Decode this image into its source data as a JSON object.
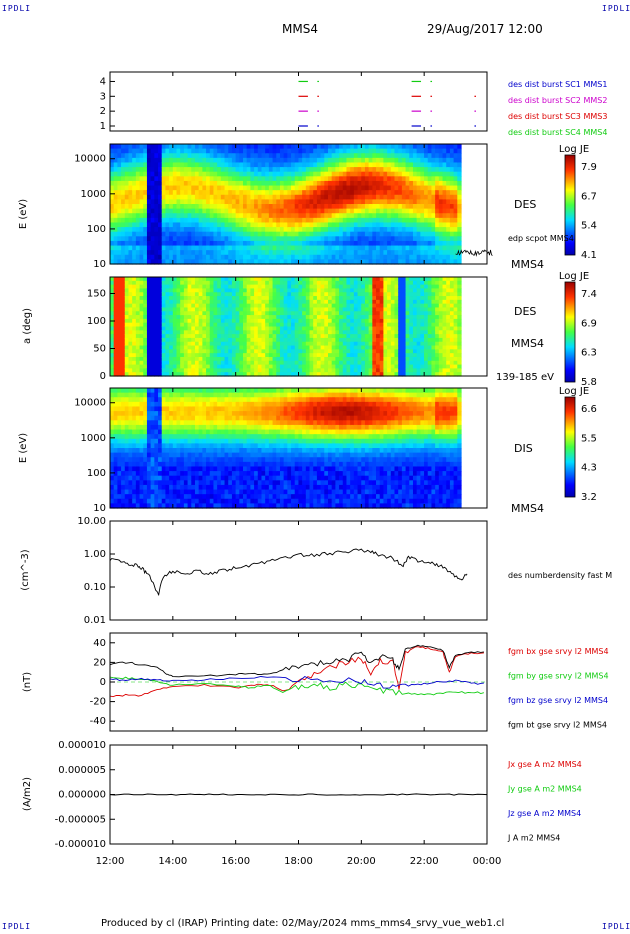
{
  "corners": {
    "top_left": "IPDLI",
    "top_right": "IPDLI",
    "bottom_left": "IPDLI",
    "bottom_right": "IPDLI"
  },
  "header": {
    "title": "MMS4",
    "date": "29/Aug/2017 12:00"
  },
  "footer": {
    "text": "Produced by cl (IRAP)   Printing date: 02/May/2024   mms_mms4_srvy_vue_web1.cl"
  },
  "time_axis": {
    "ticks": [
      "12:00",
      "14:00",
      "16:00",
      "18:00",
      "20:00",
      "22:00",
      "00:00"
    ],
    "hours": [
      12,
      14,
      16,
      18,
      20,
      22,
      24
    ]
  },
  "colors": {
    "red": "#dd0000",
    "green": "#11cc11",
    "blue": "#0000cc",
    "magenta": "#cc00cc",
    "black": "#000000",
    "label_blue": "#0000cc"
  },
  "chart_data": [
    {
      "type": "timeline",
      "name": "burst_availability",
      "yticks": [
        "4",
        "3",
        "2",
        "1"
      ],
      "legend": [
        {
          "label": "des dist burst SC1 MMS1",
          "color": "#0000cc"
        },
        {
          "label": "des dist burst SC2 MMS2",
          "color": "#cc00cc"
        },
        {
          "label": "des dist burst SC3 MMS3",
          "color": "#dd0000"
        },
        {
          "label": "des dist burst SC4 MMS4",
          "color": "#11cc11"
        }
      ],
      "segments": [
        {
          "row": 4,
          "color": "#11cc11",
          "intervals": [
            [
              18.0,
              18.3
            ],
            [
              18.6,
              18.65
            ],
            [
              21.6,
              21.9
            ],
            [
              22.2,
              22.25
            ]
          ]
        },
        {
          "row": 3,
          "color": "#dd0000",
          "intervals": [
            [
              18.0,
              18.3
            ],
            [
              18.6,
              18.65
            ],
            [
              21.6,
              21.9
            ],
            [
              22.2,
              22.25
            ],
            [
              23.6,
              23.65
            ]
          ]
        },
        {
          "row": 2,
          "color": "#cc00cc",
          "intervals": [
            [
              18.0,
              18.3
            ],
            [
              18.6,
              18.65
            ],
            [
              21.6,
              21.9
            ],
            [
              22.2,
              22.25
            ],
            [
              23.6,
              23.65
            ]
          ]
        },
        {
          "row": 1,
          "color": "#0000cc",
          "intervals": [
            [
              18.0,
              18.3
            ],
            [
              18.6,
              18.65
            ],
            [
              21.6,
              21.9
            ],
            [
              22.2,
              22.25
            ],
            [
              23.6,
              23.65
            ]
          ]
        }
      ]
    },
    {
      "type": "heatmap",
      "name": "des_energy_spectrogram",
      "ylabel": "E (eV)",
      "yticks": [
        "10000",
        "1000",
        "100",
        "10"
      ],
      "scale": "log",
      "side_labels": [
        "DES",
        "edp scpot MMS4",
        "MMS4"
      ],
      "colorbar": {
        "title": "Log JE",
        "ticks": [
          "7.9",
          "6.7",
          "5.4",
          "4.1"
        ]
      }
    },
    {
      "type": "heatmap",
      "name": "des_pitch_angle",
      "ylabel": "a (deg)",
      "yticks": [
        "150",
        "100",
        "50",
        "0"
      ],
      "side_labels": [
        "DES",
        "MMS4",
        "139-185 eV"
      ],
      "colorbar": {
        "title": "Log JE",
        "ticks": [
          "7.4",
          "6.9",
          "6.3",
          "5.8"
        ]
      }
    },
    {
      "type": "heatmap",
      "name": "dis_energy_spectrogram",
      "ylabel": "E (eV)",
      "yticks": [
        "10000",
        "1000",
        "100",
        "10"
      ],
      "scale": "log",
      "side_labels": [
        "DIS",
        "MMS4"
      ],
      "colorbar": {
        "title": "Log JE",
        "ticks": [
          "6.6",
          "5.5",
          "4.3",
          "3.2"
        ]
      }
    },
    {
      "type": "line",
      "name": "density",
      "ylabel": "(cm^-3)",
      "yticks": [
        "10.00",
        "1.00",
        "0.10",
        "0.01"
      ],
      "scale": "log",
      "ylim": [
        0.01,
        10
      ],
      "series": [
        {
          "name": "des numberdensity fast M",
          "color": "#000000",
          "points": [
            [
              12.0,
              0.7
            ],
            [
              12.3,
              0.6
            ],
            [
              12.6,
              0.5
            ],
            [
              12.9,
              0.45
            ],
            [
              13.1,
              0.3
            ],
            [
              13.3,
              0.18
            ],
            [
              13.45,
              0.08
            ],
            [
              13.55,
              0.06
            ],
            [
              13.7,
              0.2
            ],
            [
              14.0,
              0.3
            ],
            [
              14.4,
              0.25
            ],
            [
              14.8,
              0.3
            ],
            [
              15.2,
              0.25
            ],
            [
              15.6,
              0.32
            ],
            [
              16.0,
              0.38
            ],
            [
              16.5,
              0.45
            ],
            [
              17.0,
              0.6
            ],
            [
              17.5,
              0.75
            ],
            [
              18.0,
              0.95
            ],
            [
              18.5,
              0.9
            ],
            [
              19.0,
              1.05
            ],
            [
              19.5,
              1.2
            ],
            [
              20.0,
              1.3
            ],
            [
              20.3,
              1.15
            ],
            [
              20.6,
              0.95
            ],
            [
              21.0,
              0.75
            ],
            [
              21.3,
              0.4
            ],
            [
              21.5,
              0.8
            ],
            [
              21.8,
              0.65
            ],
            [
              22.2,
              0.55
            ],
            [
              22.5,
              0.45
            ],
            [
              22.8,
              0.3
            ],
            [
              23.0,
              0.2
            ],
            [
              23.2,
              0.15
            ],
            [
              23.4,
              0.3
            ]
          ]
        }
      ]
    },
    {
      "type": "line",
      "name": "magnetic_field",
      "ylabel": "(nT)",
      "yticks": [
        "40",
        "20",
        "0",
        "-20",
        "-40"
      ],
      "ylim": [
        -50,
        50
      ],
      "series": [
        {
          "name": "fgm bx gse srvy l2 MMS4",
          "color": "#dd0000",
          "points": [
            [
              12.0,
              -15
            ],
            [
              12.5,
              -13
            ],
            [
              13.0,
              -14
            ],
            [
              13.5,
              -8
            ],
            [
              14.0,
              -5
            ],
            [
              15.0,
              -3
            ],
            [
              16.0,
              -6
            ],
            [
              16.5,
              -4
            ],
            [
              17.0,
              -2
            ],
            [
              17.5,
              -8
            ],
            [
              18.0,
              0
            ],
            [
              18.5,
              8
            ],
            [
              19.0,
              15
            ],
            [
              19.5,
              20
            ],
            [
              20.0,
              25
            ],
            [
              20.3,
              10
            ],
            [
              20.6,
              22
            ],
            [
              21.0,
              20
            ],
            [
              21.2,
              -5
            ],
            [
              21.4,
              30
            ],
            [
              21.8,
              36
            ],
            [
              22.2,
              34
            ],
            [
              22.6,
              30
            ],
            [
              22.8,
              10
            ],
            [
              23.0,
              26
            ],
            [
              23.5,
              30
            ],
            [
              24.0,
              29
            ]
          ]
        },
        {
          "name": "fgm by gse srvy l2 MMS4",
          "color": "#11cc11",
          "points": [
            [
              12.0,
              5
            ],
            [
              12.5,
              4
            ],
            [
              13.0,
              3
            ],
            [
              13.5,
              0
            ],
            [
              14.0,
              -3
            ],
            [
              15.0,
              -2
            ],
            [
              16.0,
              -4
            ],
            [
              16.5,
              -6
            ],
            [
              17.0,
              -3
            ],
            [
              17.5,
              -10
            ],
            [
              18.0,
              -5
            ],
            [
              18.5,
              -2
            ],
            [
              19.0,
              -6
            ],
            [
              19.5,
              -3
            ],
            [
              20.0,
              -4
            ],
            [
              20.5,
              -8
            ],
            [
              21.0,
              -10
            ],
            [
              21.5,
              -12
            ],
            [
              22.0,
              -13
            ],
            [
              22.5,
              -12
            ],
            [
              23.0,
              -10
            ],
            [
              23.5,
              -11
            ],
            [
              24.0,
              -11
            ]
          ]
        },
        {
          "name": "fgm bz gse srvy l2 MMS4",
          "color": "#0000cc",
          "points": [
            [
              12.0,
              3
            ],
            [
              12.5,
              2
            ],
            [
              13.0,
              3
            ],
            [
              13.5,
              2
            ],
            [
              14.0,
              1
            ],
            [
              15.0,
              2
            ],
            [
              16.0,
              4
            ],
            [
              17.0,
              5
            ],
            [
              18.0,
              3
            ],
            [
              19.0,
              2
            ],
            [
              20.0,
              1
            ],
            [
              20.5,
              -3
            ],
            [
              21.0,
              -5
            ],
            [
              21.5,
              -4
            ],
            [
              22.0,
              -2
            ],
            [
              22.5,
              0
            ],
            [
              23.0,
              1
            ],
            [
              23.5,
              -1
            ],
            [
              24.0,
              -2
            ]
          ]
        },
        {
          "name": "fgm bt gse srvy l2 MMS4",
          "color": "#000000",
          "points": [
            [
              12.0,
              18
            ],
            [
              12.5,
              20
            ],
            [
              13.0,
              18
            ],
            [
              13.5,
              16
            ],
            [
              13.8,
              8
            ],
            [
              14.0,
              6
            ],
            [
              15.0,
              6
            ],
            [
              16.0,
              8
            ],
            [
              16.5,
              9
            ],
            [
              17.0,
              8
            ],
            [
              17.5,
              12
            ],
            [
              18.0,
              15
            ],
            [
              18.5,
              18
            ],
            [
              19.0,
              20
            ],
            [
              19.5,
              22
            ],
            [
              20.0,
              30
            ],
            [
              20.3,
              18
            ],
            [
              20.6,
              26
            ],
            [
              21.0,
              22
            ],
            [
              21.2,
              12
            ],
            [
              21.4,
              32
            ],
            [
              21.8,
              37
            ],
            [
              22.2,
              35
            ],
            [
              22.6,
              32
            ],
            [
              22.8,
              15
            ],
            [
              23.0,
              28
            ],
            [
              23.5,
              31
            ],
            [
              24.0,
              30
            ]
          ]
        }
      ]
    },
    {
      "type": "line",
      "name": "current_density",
      "ylabel": "(A/m2)",
      "yticks": [
        "0.000010",
        "0.000005",
        "0.000000",
        "-0.000005",
        "-0.000010"
      ],
      "ylim": [
        -1e-05,
        1e-05
      ],
      "legend": [
        {
          "label": "Jx gse A m2 MMS4",
          "color": "#dd0000"
        },
        {
          "label": "Jy gse A m2 MMS4",
          "color": "#11cc11"
        },
        {
          "label": "Jz gse A m2 MMS4",
          "color": "#0000cc"
        },
        {
          "label": "J A m2 MMS4",
          "color": "#000000"
        }
      ],
      "series": [
        {
          "name": "J A m2 MMS4",
          "color": "#000000",
          "points": [
            [
              12.0,
              0
            ],
            [
              24.0,
              0
            ]
          ]
        }
      ]
    }
  ]
}
